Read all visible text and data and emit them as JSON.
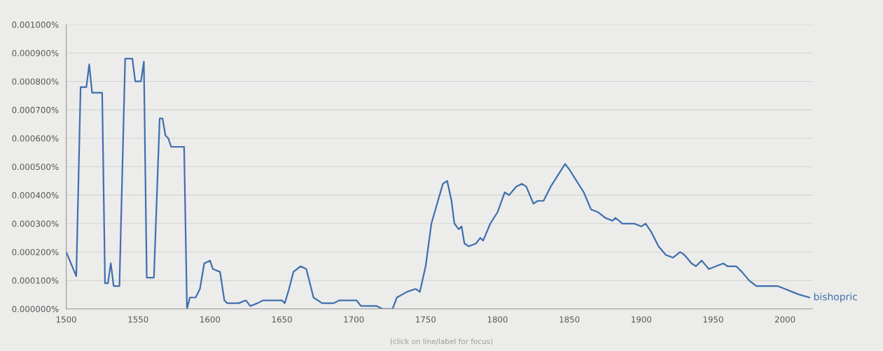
{
  "chart_data": {
    "type": "line",
    "x": [
      1500,
      1507,
      1510,
      1514,
      1516,
      1518,
      1525,
      1527,
      1529,
      1531,
      1533,
      1537,
      1541,
      1546,
      1548,
      1552,
      1554,
      1556,
      1561,
      1565,
      1567,
      1569,
      1571,
      1573,
      1582,
      1584,
      1586,
      1590,
      1593,
      1596,
      1600,
      1602,
      1607,
      1610,
      1612,
      1620,
      1625,
      1628,
      1633,
      1637,
      1645,
      1650,
      1652,
      1655,
      1658,
      1663,
      1667,
      1669,
      1672,
      1678,
      1686,
      1690,
      1697,
      1702,
      1705,
      1716,
      1720,
      1727,
      1730,
      1737,
      1743,
      1746,
      1750,
      1754,
      1758,
      1762,
      1765,
      1768,
      1770,
      1773,
      1775,
      1777,
      1780,
      1785,
      1788,
      1790,
      1795,
      1800,
      1805,
      1808,
      1813,
      1817,
      1820,
      1825,
      1828,
      1832,
      1837,
      1842,
      1847,
      1850,
      1855,
      1860,
      1865,
      1870,
      1875,
      1880,
      1882,
      1887,
      1895,
      1900,
      1903,
      1907,
      1912,
      1917,
      1922,
      1927,
      1930,
      1935,
      1938,
      1942,
      1947,
      1952,
      1957,
      1960,
      1966,
      1970,
      1975,
      1980,
      1985,
      1990,
      1995,
      2000,
      2005,
      2010,
      2017
    ],
    "series": [
      {
        "name": "bishopric",
        "color": "#3f6fae",
        "values": [
          0.0002,
          0.000115,
          0.00078,
          0.00078,
          0.00086,
          0.00076,
          0.00076,
          9e-05,
          9e-05,
          0.00016,
          8e-05,
          8e-05,
          0.00088,
          0.00088,
          0.0008,
          0.0008,
          0.00087,
          0.00011,
          0.00011,
          0.00067,
          0.00067,
          0.00061,
          0.0006,
          0.00057,
          0.00057,
          0.0,
          4e-05,
          4e-05,
          7e-05,
          0.00016,
          0.00017,
          0.00014,
          0.00013,
          3e-05,
          2e-05,
          2e-05,
          3e-05,
          1e-05,
          2e-05,
          3e-05,
          3e-05,
          3e-05,
          2e-05,
          7e-05,
          0.00013,
          0.00015,
          0.00014,
          0.0001,
          4e-05,
          2e-05,
          2e-05,
          3e-05,
          3e-05,
          3e-05,
          1e-05,
          1e-05,
          0.0,
          0.0,
          4e-05,
          6e-05,
          7e-05,
          6e-05,
          0.00015,
          0.0003,
          0.00037,
          0.00044,
          0.00045,
          0.00038,
          0.0003,
          0.00028,
          0.00029,
          0.00023,
          0.00022,
          0.00023,
          0.00025,
          0.00024,
          0.0003,
          0.00034,
          0.00041,
          0.0004,
          0.00043,
          0.00044,
          0.00043,
          0.00037,
          0.00038,
          0.00038,
          0.00043,
          0.00047,
          0.00051,
          0.00049,
          0.00045,
          0.00041,
          0.00035,
          0.00034,
          0.00032,
          0.00031,
          0.00032,
          0.0003,
          0.0003,
          0.00029,
          0.0003,
          0.00027,
          0.00022,
          0.00019,
          0.00018,
          0.0002,
          0.00019,
          0.00016,
          0.00015,
          0.00017,
          0.00014,
          0.00015,
          0.00016,
          0.00015,
          0.00015,
          0.00013,
          0.0001,
          8e-05,
          8e-05,
          8e-05,
          8e-05,
          7e-05,
          6e-05,
          5e-05,
          4e-05
        ]
      }
    ],
    "xlim": [
      1500,
      2019
    ],
    "xticks": [
      1500,
      1550,
      1600,
      1650,
      1700,
      1750,
      1800,
      1850,
      1900,
      1950,
      2000
    ],
    "ylim": [
      0,
      0.001
    ],
    "yticks": [
      {
        "value": 0,
        "label": "0.000000%"
      },
      {
        "value": 0.0001,
        "label": "0.000100%"
      },
      {
        "value": 0.0002,
        "label": "0.000200%"
      },
      {
        "value": 0.0003,
        "label": "0.000300%"
      },
      {
        "value": 0.0004,
        "label": "0.000400%"
      },
      {
        "value": 0.0005,
        "label": "0.000500%"
      },
      {
        "value": 0.0006,
        "label": "0.000600%"
      },
      {
        "value": 0.0007,
        "label": "0.000700%"
      },
      {
        "value": 0.0008,
        "label": "0.000800%"
      },
      {
        "value": 0.0009,
        "label": "0.000900%"
      },
      {
        "value": 0.001,
        "label": "0.001000%"
      }
    ],
    "grid": "y",
    "annotations": [
      "(click on line/label for focus)"
    ]
  }
}
